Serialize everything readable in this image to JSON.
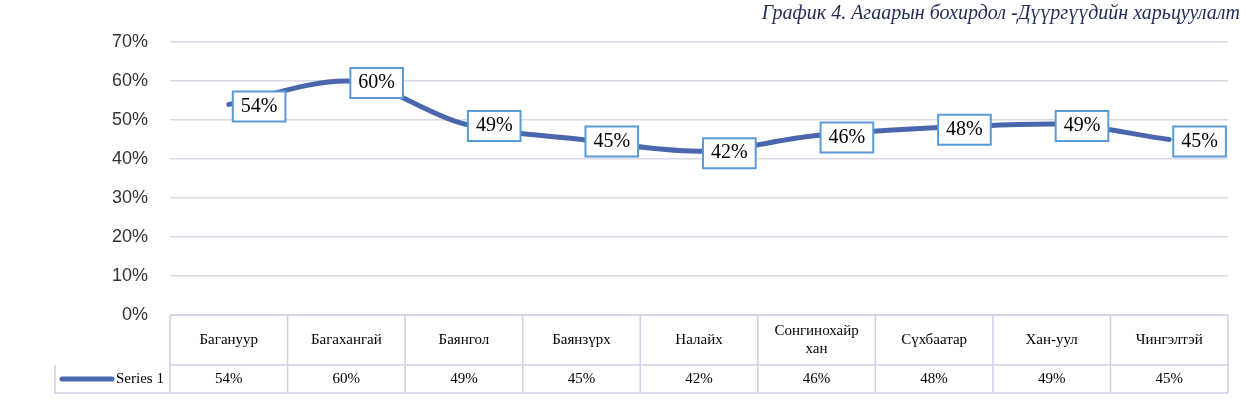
{
  "chart_data": {
    "type": "line",
    "title": "График 4. Агаарын бохирдол -Дүүргүүдийн харьцуулалт",
    "categories": [
      "Багануур",
      "Багахангай",
      "Баянгол",
      "Баянзүрх",
      "Налайх",
      "Сонгинохайр хан",
      "Сүхбаатар",
      "Хан-уул",
      "Чингэлтэй"
    ],
    "series": [
      {
        "name": "Series 1",
        "color": "#4a67ad",
        "values": [
          54,
          60,
          49,
          45,
          42,
          46,
          48,
          49,
          45
        ],
        "value_labels": [
          "54%",
          "60%",
          "49%",
          "45%",
          "42%",
          "46%",
          "48%",
          "49%",
          "45%"
        ]
      }
    ],
    "ylim": [
      0,
      70
    ],
    "yticks": [
      {
        "value": 0,
        "label": "0%"
      },
      {
        "value": 10,
        "label": "10%"
      },
      {
        "value": 20,
        "label": "20%"
      },
      {
        "value": 30,
        "label": "30%"
      },
      {
        "value": 40,
        "label": "40%"
      },
      {
        "value": 50,
        "label": "50%"
      },
      {
        "value": 60,
        "label": "60%"
      },
      {
        "value": 70,
        "label": "70%"
      }
    ],
    "grid": "y",
    "legend": "bottom",
    "marker": "none",
    "line_style": "solid"
  }
}
